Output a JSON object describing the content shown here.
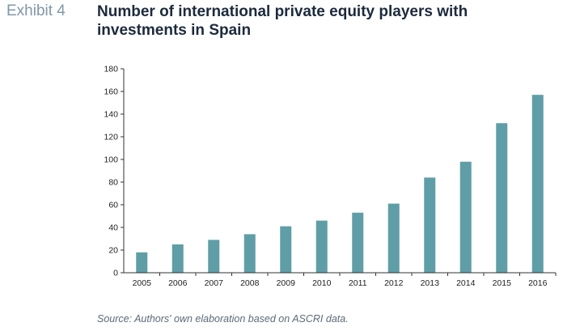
{
  "exhibit_label": "Exhibit 4",
  "title_lines": [
    "Number of international private equity players with",
    "investments in Spain"
  ],
  "source": "Source: Authors' own elaboration based on ASCRI data.",
  "colors": {
    "bar": "#5f9ea6",
    "axis": "#333333"
  },
  "chart_data": {
    "type": "bar",
    "title": "Number of international private equity players with investments in Spain",
    "categories": [
      "2005",
      "2006",
      "2007",
      "2008",
      "2009",
      "2010",
      "2011",
      "2012",
      "2013",
      "2014",
      "2015",
      "2016"
    ],
    "values": [
      18,
      25,
      29,
      34,
      41,
      46,
      53,
      61,
      84,
      98,
      132,
      157
    ],
    "xlabel": "",
    "ylabel": "",
    "ylim": [
      0,
      180
    ],
    "yticks": [
      0,
      20,
      40,
      60,
      80,
      100,
      120,
      140,
      160,
      180
    ],
    "grid": false,
    "legend": "none"
  }
}
